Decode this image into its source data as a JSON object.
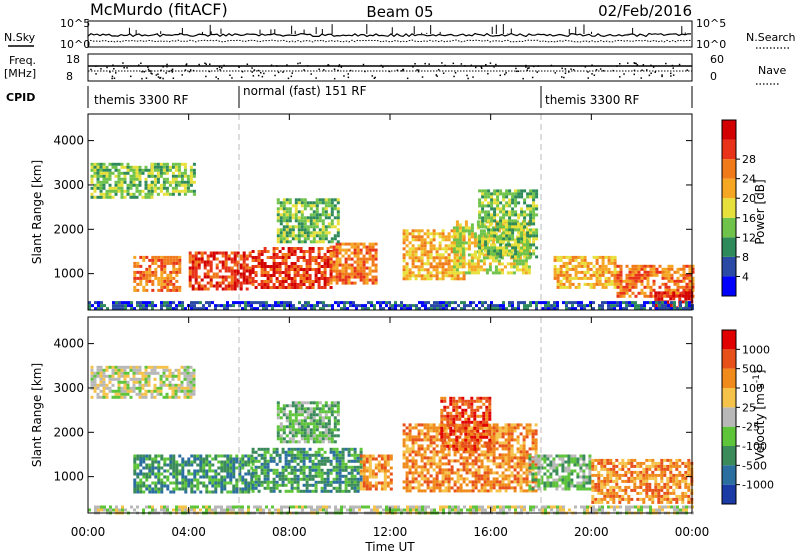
{
  "header": {
    "station": "McMurdo (fitACF)",
    "beam": "Beam 05",
    "date": "02/Feb/2016"
  },
  "top_panels": {
    "nsky_label": "N.Sky",
    "nsearch_label": "N.Search",
    "noise_ticks_left": [
      "10^5",
      "10^0"
    ],
    "noise_ticks_right": [
      "10^5",
      "10^0"
    ],
    "freq_label_line1": "Freq.",
    "freq_label_line2": "[MHz]",
    "freq_ticks": [
      "18",
      "8"
    ],
    "nave_label": "Nave",
    "nave_ticks": [
      "60",
      "0"
    ],
    "cpid_label": "CPID",
    "cpid_segments": [
      {
        "label": "themis 3300 RF",
        "start_hour": 0,
        "end_hour": 6
      },
      {
        "label": "normal (fast) 151 RF",
        "start_hour": 6,
        "end_hour": 18
      },
      {
        "label": "themis 3300 RF",
        "start_hour": 18,
        "end_hour": 24
      }
    ]
  },
  "power_colorbar": {
    "label": "Power [dB]",
    "ticks": [
      "4",
      "8",
      "12",
      "16",
      "20",
      "24",
      "28"
    ],
    "colors": [
      "#0000ff",
      "#2a4aa6",
      "#2e8a5a",
      "#6fc24a",
      "#e8e03a",
      "#f5a623",
      "#f07a1a",
      "#e8331a",
      "#d20000"
    ]
  },
  "velocity_colorbar": {
    "label": "Velocity [m s^-1]",
    "ticks": [
      "1000",
      "500",
      "100",
      "25",
      "-25",
      "-100",
      "-500",
      "-1000"
    ],
    "colors": [
      "#1a3aa6",
      "#2a6fa0",
      "#3a8a5a",
      "#5ec43a",
      "#b8b8b8",
      "#f5c24a",
      "#f08a1a",
      "#e8501a",
      "#e00000"
    ]
  },
  "chart_data": [
    {
      "type": "heatmap",
      "title": "Power",
      "ylabel": "Slant Range [km]",
      "xlabel": "Time UT",
      "x_ticks": [
        "00:00",
        "04:00",
        "08:00",
        "12:00",
        "16:00",
        "20:00",
        "00:00"
      ],
      "y_ticks": [
        "1000",
        "2000",
        "3000",
        "4000"
      ],
      "xlim": [
        0,
        24
      ],
      "ylim": [
        180,
        4600
      ],
      "regions": [
        {
          "t0": 0.1,
          "t1": 2.5,
          "r0": 2700,
          "r1": 3500,
          "level": 3
        },
        {
          "t0": 2.5,
          "t1": 4.2,
          "r0": 2800,
          "r1": 3500,
          "level": 3
        },
        {
          "t0": 1.8,
          "t1": 3.6,
          "r0": 600,
          "r1": 1400,
          "level": 6
        },
        {
          "t0": 4.0,
          "t1": 6.5,
          "r0": 650,
          "r1": 1500,
          "level": 7
        },
        {
          "t0": 6.5,
          "t1": 9.6,
          "r0": 700,
          "r1": 1600,
          "level": 7
        },
        {
          "t0": 9.6,
          "t1": 11.5,
          "r0": 800,
          "r1": 1700,
          "level": 6
        },
        {
          "t0": 7.5,
          "t1": 10.0,
          "r0": 1700,
          "r1": 2700,
          "level": 3
        },
        {
          "t0": 12.5,
          "t1": 15.0,
          "r0": 900,
          "r1": 2000,
          "level": 5
        },
        {
          "t0": 14.5,
          "t1": 17.5,
          "r0": 1000,
          "r1": 2200,
          "level": 4
        },
        {
          "t0": 15.5,
          "t1": 17.8,
          "r0": 1400,
          "r1": 2900,
          "level": 3
        },
        {
          "t0": 18.5,
          "t1": 21.0,
          "r0": 700,
          "r1": 1400,
          "level": 5
        },
        {
          "t0": 21.0,
          "t1": 24.0,
          "r0": 500,
          "r1": 1200,
          "level": 6
        },
        {
          "t0": 22.5,
          "t1": 24.0,
          "r0": 200,
          "r1": 600,
          "level": 8
        },
        {
          "t0": 0.0,
          "t1": 24.0,
          "r0": 180,
          "r1": 380,
          "level": 1
        }
      ]
    },
    {
      "type": "heatmap",
      "title": "Velocity",
      "ylabel": "Slant Range [km]",
      "xlabel": "Time UT",
      "x_ticks": [
        "00:00",
        "04:00",
        "08:00",
        "12:00",
        "16:00",
        "20:00",
        "00:00"
      ],
      "y_ticks": [
        "1000",
        "2000",
        "3000",
        "4000"
      ],
      "xlim": [
        0,
        24
      ],
      "ylim": [
        180,
        4600
      ],
      "regions": [
        {
          "t0": 0.1,
          "t1": 4.2,
          "r0": 2800,
          "r1": 3500,
          "level": 4
        },
        {
          "t0": 1.8,
          "t1": 6.5,
          "r0": 650,
          "r1": 1500,
          "level": 2
        },
        {
          "t0": 6.5,
          "t1": 10.8,
          "r0": 700,
          "r1": 1650,
          "level": 2
        },
        {
          "t0": 10.8,
          "t1": 12.0,
          "r0": 700,
          "r1": 1500,
          "level": 6
        },
        {
          "t0": 7.5,
          "t1": 10.0,
          "r0": 1800,
          "r1": 2700,
          "level": 3
        },
        {
          "t0": 12.5,
          "t1": 17.8,
          "r0": 700,
          "r1": 2200,
          "level": 6
        },
        {
          "t0": 14.0,
          "t1": 16.0,
          "r0": 1600,
          "r1": 2800,
          "level": 7
        },
        {
          "t0": 17.5,
          "t1": 20.0,
          "r0": 700,
          "r1": 1500,
          "level": 3
        },
        {
          "t0": 20.0,
          "t1": 24.0,
          "r0": 400,
          "r1": 1400,
          "level": 6
        },
        {
          "t0": 0.0,
          "t1": 24.0,
          "r0": 180,
          "r1": 350,
          "level": 4
        }
      ]
    }
  ]
}
